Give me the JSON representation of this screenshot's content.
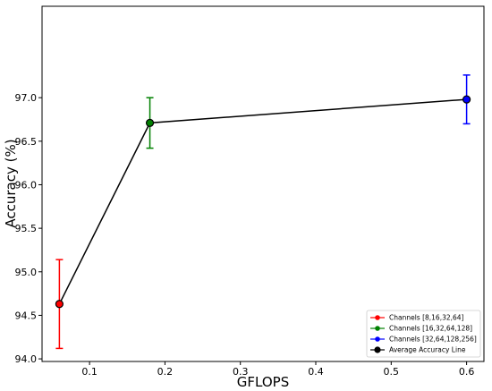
{
  "chart_data": {
    "type": "scatter",
    "title": "",
    "xlabel": "GFLOPS",
    "ylabel": "Accuracy (%)",
    "xlim": [
      0.037,
      0.623
    ],
    "ylim": [
      93.97,
      98.05
    ],
    "x_ticks": [
      0.1,
      0.2,
      0.3,
      0.4,
      0.5,
      0.6
    ],
    "x_tick_labels": [
      "0.1",
      "0.2",
      "0.3",
      "0.4",
      "0.5",
      "0.6"
    ],
    "y_ticks": [
      94.0,
      94.5,
      95.0,
      95.5,
      96.0,
      96.5,
      97.0
    ],
    "y_tick_labels": [
      "94.0",
      "94.5",
      "95.0",
      "95.5",
      "96.0",
      "96.5",
      "97.0"
    ],
    "grid": false,
    "legend_position": "bottom-right",
    "series": [
      {
        "name": "Channels [8,16,32,64]",
        "color": "#ff0000",
        "x": [
          0.06
        ],
        "y": [
          94.63
        ],
        "err_low": [
          94.12
        ],
        "err_high": [
          95.14
        ]
      },
      {
        "name": "Channels [16,32,64,128]",
        "color": "#008000",
        "x": [
          0.18
        ],
        "y": [
          96.71
        ],
        "err_low": [
          96.42
        ],
        "err_high": [
          97.0
        ]
      },
      {
        "name": "Channels [32,64,128,256]",
        "color": "#0000ff",
        "x": [
          0.6
        ],
        "y": [
          96.98
        ],
        "err_low": [
          96.7
        ],
        "err_high": [
          97.26
        ]
      }
    ],
    "average_line": {
      "name": "Average Accuracy Line",
      "color": "#000000",
      "x": [
        0.06,
        0.18,
        0.6
      ],
      "y": [
        94.63,
        96.71,
        96.98
      ]
    }
  }
}
